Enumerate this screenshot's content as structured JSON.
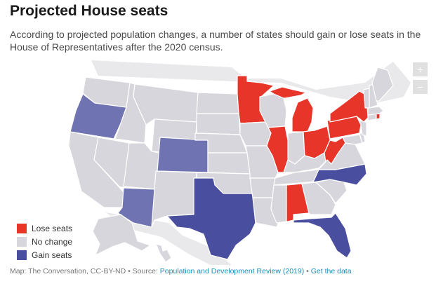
{
  "title": "Projected House seats",
  "subtitle": "According to projected population changes, a number of states should gain or lose seats in the House of Representatives after the 2020 census.",
  "colors": {
    "lose": "#e8352a",
    "none": "#d6d6dc",
    "gain": "#4a4e9e",
    "gain_light": "#6f73b2",
    "link": "#1a8fb8"
  },
  "zoom": {
    "in_label": "+",
    "out_label": "−"
  },
  "legend": [
    {
      "label": "Lose seats",
      "category": "lose"
    },
    {
      "label": "No change",
      "category": "none"
    },
    {
      "label": "Gain seats",
      "category": "gain"
    }
  ],
  "states": {
    "lose": [
      "Minnesota",
      "Michigan",
      "Illinois",
      "Ohio",
      "Pennsylvania",
      "New York",
      "West Virginia",
      "Rhode Island",
      "Alabama"
    ],
    "gain": [
      "Oregon",
      "Colorado",
      "Arizona",
      "Texas",
      "North Carolina",
      "Florida"
    ]
  },
  "footer": {
    "prefix": "Map: The Conversation, CC-BY-ND • Source: ",
    "source_link": "Population and Development Review (2019)",
    "separator": " • ",
    "data_link": "Get the data"
  }
}
